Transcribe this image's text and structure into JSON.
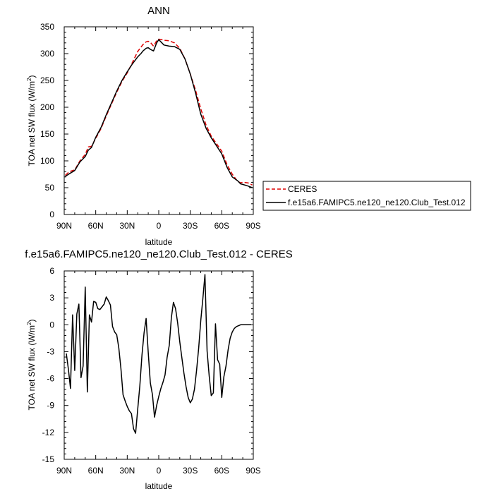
{
  "chart_data": [
    {
      "type": "line",
      "title": "ANN",
      "xlabel": "latitude",
      "ylabel": "TOA net SW flux (W/m",
      "ylabel_sup": "2",
      "ylabel_tail": ")",
      "xlim": [
        90,
        -90
      ],
      "ylim": [
        0,
        350
      ],
      "xticks": [
        90,
        60,
        30,
        0,
        -30,
        -60,
        -90
      ],
      "xtick_labels": [
        "90N",
        "60N",
        "30N",
        "0",
        "30S",
        "60S",
        "90S"
      ],
      "yticks": [
        0,
        50,
        100,
        150,
        200,
        250,
        300,
        350
      ],
      "ytick_labels": [
        "0",
        "50",
        "100",
        "150",
        "200",
        "250",
        "300",
        "350"
      ],
      "legend_position": "right",
      "series": [
        {
          "name": "CERES",
          "color": "#dd0000",
          "dash": true,
          "x": [
            89,
            85,
            80,
            75,
            70,
            67,
            64,
            60,
            55,
            50,
            45,
            40,
            35,
            30,
            25,
            20,
            17,
            15,
            12,
            10,
            8,
            5,
            2,
            0,
            -3,
            -5,
            -10,
            -15,
            -20,
            -25,
            -30,
            -35,
            -40,
            -45,
            -50,
            -55,
            -60,
            -65,
            -70,
            -75,
            -78,
            -80,
            -85,
            -89
          ],
          "y": [
            73,
            80,
            83,
            100,
            112,
            126,
            127,
            142,
            160,
            184,
            206,
            228,
            248,
            264,
            284,
            304,
            312,
            317,
            322,
            323,
            321,
            314,
            324,
            327,
            326,
            325,
            324,
            320,
            310,
            290,
            262,
            232,
            197,
            167,
            146,
            132,
            118,
            93,
            75,
            62,
            59,
            60,
            59,
            55
          ]
        },
        {
          "name": "f.e15a6.FAMIPC5.ne120_ne120.Club_Test.012",
          "color": "#000000",
          "dash": false,
          "x": [
            89,
            85,
            80,
            75,
            70,
            67,
            64,
            60,
            55,
            50,
            45,
            40,
            35,
            30,
            25,
            20,
            17,
            15,
            12,
            10,
            8,
            5,
            2,
            0,
            -3,
            -5,
            -10,
            -15,
            -20,
            -25,
            -30,
            -35,
            -40,
            -45,
            -50,
            -55,
            -60,
            -65,
            -70,
            -75,
            -78,
            -80,
            -85,
            -89
          ],
          "y": [
            71,
            76,
            82,
            98,
            108,
            120,
            125,
            144,
            162,
            186,
            208,
            230,
            250,
            266,
            281,
            294,
            300,
            305,
            310,
            311,
            308,
            305,
            320,
            326,
            320,
            316,
            314,
            313,
            308,
            290,
            262,
            227,
            187,
            161,
            143,
            128,
            113,
            88,
            70,
            63,
            57,
            56,
            53,
            50
          ]
        }
      ]
    },
    {
      "type": "line",
      "title": "f.e15a6.FAMIPC5.ne120_ne120.Club_Test.012 - CERES",
      "xlabel": "latitude",
      "ylabel": "TOA net SW flux (W/m",
      "ylabel_sup": "2",
      "ylabel_tail": ")",
      "xlim": [
        90,
        -90
      ],
      "ylim": [
        -15,
        6
      ],
      "xticks": [
        90,
        60,
        30,
        0,
        -30,
        -60,
        -90
      ],
      "xtick_labels": [
        "90N",
        "60N",
        "30N",
        "0",
        "30S",
        "60S",
        "90S"
      ],
      "yticks": [
        6,
        3,
        0,
        -3,
        -6,
        -9,
        -12,
        -15
      ],
      "ytick_labels": [
        "6",
        "3",
        "0",
        "-3",
        "-6",
        "-9",
        "-12",
        "-15"
      ],
      "series": [
        {
          "color": "#000000",
          "x": [
            88,
            86,
            84,
            82,
            80,
            78,
            76,
            74,
            72,
            70,
            68,
            66,
            64,
            62,
            60,
            58,
            56,
            54,
            52,
            50,
            48,
            46,
            44,
            42,
            40,
            38,
            36,
            34,
            32,
            30,
            28,
            26,
            24,
            22,
            20,
            18,
            16,
            14,
            12,
            10,
            8,
            6,
            4,
            2,
            0,
            -2,
            -4,
            -6,
            -8,
            -10,
            -12,
            -14,
            -16,
            -18,
            -20,
            -22,
            -24,
            -26,
            -28,
            -30,
            -32,
            -34,
            -36,
            -38,
            -40,
            -42,
            -44,
            -46,
            -48,
            -50,
            -52,
            -54,
            -56,
            -58,
            -60,
            -62,
            -64,
            -66,
            -68,
            -70,
            -72,
            -74,
            -76,
            -78,
            -80,
            -82,
            -84,
            -86,
            -88
          ],
          "y": [
            -3.2,
            -5.0,
            -7.1,
            1.1,
            -5.1,
            1.2,
            2.3,
            -5.9,
            -4.6,
            4.2,
            -7.5,
            1.1,
            0.3,
            2.6,
            2.5,
            1.8,
            1.7,
            2.0,
            2.3,
            3.1,
            2.7,
            2.2,
            -0.2,
            -0.8,
            -1.1,
            -2.6,
            -4.9,
            -7.8,
            -8.5,
            -9.1,
            -9.6,
            -9.9,
            -11.6,
            -12.1,
            -9.4,
            -6.8,
            -3.4,
            -0.9,
            0.7,
            -3.1,
            -6.5,
            -7.8,
            -10.3,
            -9.0,
            -8.0,
            -7.1,
            -6.4,
            -5.6,
            -3.6,
            -2.3,
            0.8,
            2.5,
            1.8,
            0.2,
            -1.9,
            -3.7,
            -5.4,
            -6.9,
            -8.1,
            -8.7,
            -8.3,
            -7.2,
            -5.1,
            -2.6,
            0.5,
            2.9,
            5.6,
            -2.9,
            -5.7,
            -7.9,
            -7.6,
            0.1,
            -3.9,
            -4.4,
            -8.1,
            -5.8,
            -4.6,
            -2.8,
            -1.5,
            -0.8,
            -0.4,
            -0.2,
            -0.1,
            0.0,
            0.0,
            0.0,
            0.0,
            0.0,
            0.0
          ]
        }
      ]
    }
  ]
}
